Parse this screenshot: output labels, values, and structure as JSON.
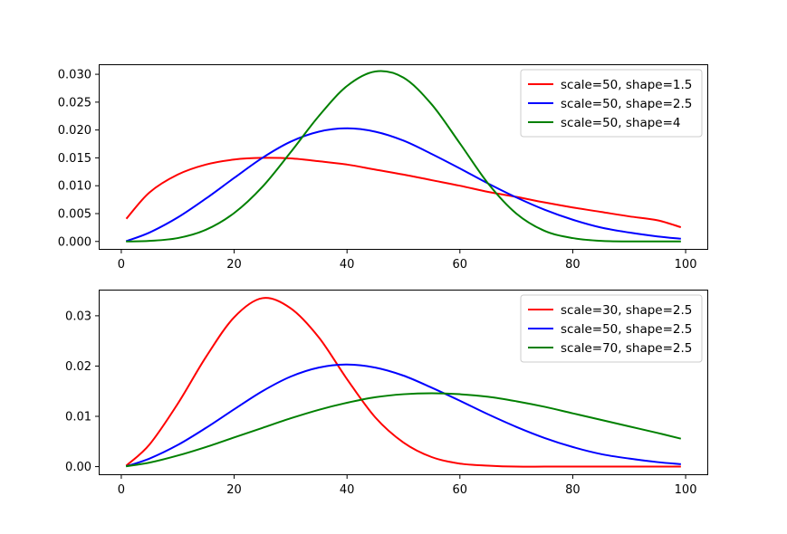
{
  "chart_data": [
    {
      "type": "line",
      "title": "",
      "xlabel": "",
      "ylabel": "",
      "xlim": [
        -4,
        104
      ],
      "ylim": [
        -0.0015,
        0.0318
      ],
      "xticks": [
        0,
        20,
        40,
        60,
        80,
        100
      ],
      "xtick_labels": [
        "0",
        "20",
        "40",
        "60",
        "80",
        "100"
      ],
      "yticks": [
        0.0,
        0.005,
        0.01,
        0.015,
        0.02,
        0.025,
        0.03
      ],
      "ytick_labels": [
        "0.000",
        "0.005",
        "0.010",
        "0.015",
        "0.020",
        "0.025",
        "0.030"
      ],
      "grid": false,
      "legend_position": "top-right",
      "x": [
        1,
        5,
        10,
        15,
        20,
        25,
        30,
        35,
        40,
        45,
        50,
        55,
        60,
        65,
        70,
        75,
        80,
        85,
        90,
        95,
        99
      ],
      "series": [
        {
          "name": "scale=50, shape=1.5",
          "color": "#ff0000",
          "values": [
            0.0042,
            0.0088,
            0.012,
            0.0138,
            0.0147,
            0.015,
            0.0149,
            0.0144,
            0.0138,
            0.0129,
            0.012,
            0.011,
            0.01,
            0.0089,
            0.008,
            0.007,
            0.0061,
            0.0053,
            0.0045,
            0.0038,
            0.0026
          ]
        },
        {
          "name": "scale=50, shape=2.5",
          "color": "#0000ff",
          "values": [
            0.0001,
            0.0016,
            0.0043,
            0.0077,
            0.0114,
            0.015,
            0.0179,
            0.0197,
            0.0203,
            0.0197,
            0.0181,
            0.0157,
            0.0131,
            0.0104,
            0.0079,
            0.0057,
            0.0039,
            0.0025,
            0.0016,
            0.0009,
            0.0005
          ]
        },
        {
          "name": "scale=50, shape=4",
          "color": "#008000",
          "values": [
            0.0,
            0.0001,
            0.0006,
            0.0021,
            0.0051,
            0.0098,
            0.016,
            0.0225,
            0.0279,
            0.0305,
            0.0294,
            0.0246,
            0.0176,
            0.0104,
            0.005,
            0.0019,
            0.0006,
            0.0001,
            0.0,
            0.0,
            0.0
          ]
        }
      ]
    },
    {
      "type": "line",
      "title": "",
      "xlabel": "",
      "ylabel": "",
      "xlim": [
        -4,
        104
      ],
      "ylim": [
        -0.0017,
        0.0352
      ],
      "xticks": [
        0,
        20,
        40,
        60,
        80,
        100
      ],
      "xtick_labels": [
        "0",
        "20",
        "40",
        "60",
        "80",
        "100"
      ],
      "yticks": [
        0.0,
        0.01,
        0.02,
        0.03
      ],
      "ytick_labels": [
        "0.00",
        "0.01",
        "0.02",
        "0.03"
      ],
      "grid": false,
      "legend_position": "top-right",
      "x": [
        1,
        5,
        10,
        15,
        20,
        25,
        30,
        35,
        40,
        45,
        50,
        55,
        60,
        65,
        70,
        75,
        80,
        85,
        90,
        95,
        99
      ],
      "series": [
        {
          "name": "scale=30, shape=2.5",
          "color": "#ff0000",
          "values": [
            0.0003,
            0.0044,
            0.0125,
            0.0218,
            0.0297,
            0.0335,
            0.0315,
            0.0257,
            0.0174,
            0.0098,
            0.0048,
            0.0019,
            0.0006,
            0.0002,
            0.0,
            0.0,
            0.0,
            0.0,
            0.0,
            0.0,
            0.0
          ]
        },
        {
          "name": "scale=50, shape=2.5",
          "color": "#0000ff",
          "values": [
            0.0001,
            0.0016,
            0.0043,
            0.0077,
            0.0114,
            0.015,
            0.0179,
            0.0197,
            0.0203,
            0.0197,
            0.0181,
            0.0157,
            0.0131,
            0.0104,
            0.0079,
            0.0057,
            0.0039,
            0.0025,
            0.0016,
            0.0009,
            0.0005
          ]
        },
        {
          "name": "scale=70, shape=2.5",
          "color": "#008000",
          "values": [
            0.0001,
            0.0008,
            0.0022,
            0.0039,
            0.0058,
            0.0077,
            0.0096,
            0.0113,
            0.0127,
            0.0138,
            0.0144,
            0.0146,
            0.0144,
            0.0139,
            0.013,
            0.0119,
            0.0106,
            0.0093,
            0.008,
            0.0067,
            0.0056
          ]
        }
      ]
    }
  ]
}
